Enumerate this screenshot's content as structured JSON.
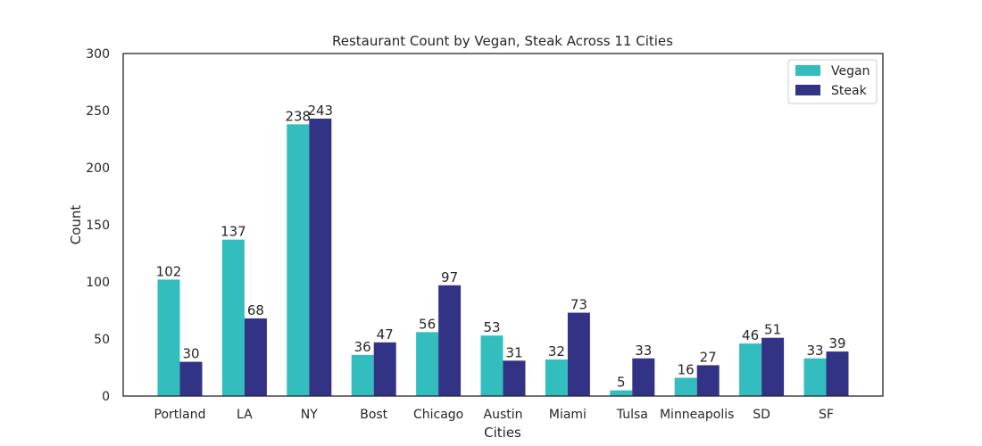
{
  "chart_data": {
    "type": "bar",
    "title": "Restaurant Count by Vegan, Steak Across 11 Cities",
    "xlabel": "Cities",
    "ylabel": "Count",
    "ylim": [
      0,
      300
    ],
    "yticks": [
      0,
      50,
      100,
      150,
      200,
      250,
      300
    ],
    "grid": false,
    "legend_position": "top-right",
    "categories": [
      "Portland",
      "LA",
      "NY",
      "Bost",
      "Chicago",
      "Austin",
      "Miami",
      "Tulsa",
      "Minneapolis",
      "SD",
      "SF"
    ],
    "series": [
      {
        "name": "Vegan",
        "color": "#33bdbf",
        "values": [
          102,
          137,
          238,
          36,
          56,
          53,
          32,
          5,
          16,
          46,
          33
        ]
      },
      {
        "name": "Steak",
        "color": "#333385",
        "values": [
          30,
          68,
          243,
          47,
          97,
          31,
          73,
          33,
          27,
          51,
          39
        ]
      }
    ]
  }
}
